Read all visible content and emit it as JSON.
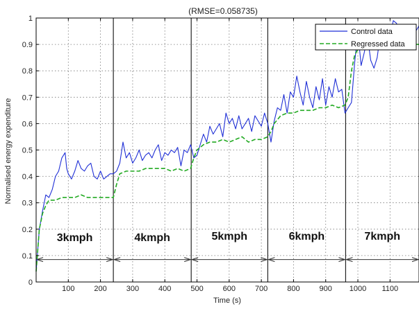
{
  "chart_data": {
    "type": "line",
    "title": "(RMSE=0.058735)",
    "xlabel": "Time (s)",
    "ylabel": "Normalised energy expenditure",
    "xlim": [
      0,
      1190
    ],
    "ylim": [
      0,
      1
    ],
    "grid": true,
    "legend_position": "top-right",
    "x_ticks": [
      100,
      200,
      300,
      400,
      500,
      600,
      700,
      800,
      900,
      1000,
      1100
    ],
    "y_ticks": [
      0,
      0.1,
      0.2,
      0.3,
      0.4,
      0.5,
      0.6,
      0.7,
      0.8,
      0.9,
      1
    ],
    "x_tick_labels": [
      "100",
      "200",
      "300",
      "400",
      "500",
      "600",
      "700",
      "800",
      "900",
      "1000",
      "1100"
    ],
    "y_tick_labels": [
      "0",
      "0.1",
      "0.2",
      "0.3",
      "0.4",
      "0.5",
      "0.6",
      "0.7",
      "0.8",
      "0.9",
      "1"
    ],
    "phase_boundaries": [
      240,
      482,
      720,
      962
    ],
    "phase_arrow_y": 0.085,
    "phases": [
      {
        "label": "3kmph",
        "x_start": 0,
        "x_end": 240,
        "label_x": 120,
        "label_y": 0.155
      },
      {
        "label": "4kmph",
        "x_start": 240,
        "x_end": 482,
        "label_x": 361,
        "label_y": 0.155
      },
      {
        "label": "5kmph",
        "x_start": 482,
        "x_end": 720,
        "label_x": 601,
        "label_y": 0.16
      },
      {
        "label": "6kmph",
        "x_start": 720,
        "x_end": 962,
        "label_x": 841,
        "label_y": 0.16
      },
      {
        "label": "7kmph",
        "x_start": 962,
        "x_end": 1190,
        "label_x": 1076,
        "label_y": 0.16
      }
    ],
    "series": [
      {
        "name": "Control data",
        "color": "#1f2fd6",
        "dash": "solid",
        "x": [
          0,
          5,
          10,
          20,
          30,
          40,
          50,
          60,
          70,
          80,
          90,
          95,
          100,
          110,
          120,
          130,
          140,
          150,
          160,
          170,
          180,
          190,
          200,
          210,
          220,
          230,
          240,
          250,
          260,
          270,
          280,
          290,
          300,
          310,
          320,
          330,
          340,
          350,
          360,
          370,
          380,
          390,
          400,
          410,
          420,
          430,
          440,
          450,
          460,
          470,
          480,
          490,
          500,
          510,
          520,
          530,
          540,
          550,
          560,
          570,
          580,
          590,
          600,
          610,
          620,
          630,
          640,
          650,
          660,
          670,
          680,
          690,
          700,
          710,
          720,
          730,
          740,
          750,
          760,
          770,
          780,
          790,
          800,
          810,
          820,
          830,
          840,
          850,
          860,
          870,
          880,
          890,
          900,
          910,
          920,
          930,
          940,
          950,
          960,
          970,
          980,
          990,
          1000,
          1010,
          1020,
          1030,
          1040,
          1050,
          1060,
          1070,
          1080,
          1090,
          1100,
          1110,
          1120,
          1130,
          1140,
          1150,
          1160,
          1170,
          1180,
          1190
        ],
        "y": [
          0.04,
          0.12,
          0.2,
          0.27,
          0.33,
          0.32,
          0.35,
          0.4,
          0.42,
          0.47,
          0.49,
          0.43,
          0.41,
          0.39,
          0.42,
          0.46,
          0.43,
          0.42,
          0.44,
          0.45,
          0.4,
          0.39,
          0.42,
          0.39,
          0.4,
          0.41,
          0.41,
          0.42,
          0.45,
          0.53,
          0.47,
          0.49,
          0.45,
          0.47,
          0.5,
          0.46,
          0.48,
          0.49,
          0.47,
          0.5,
          0.52,
          0.46,
          0.49,
          0.48,
          0.5,
          0.49,
          0.51,
          0.44,
          0.5,
          0.49,
          0.52,
          0.47,
          0.48,
          0.52,
          0.56,
          0.53,
          0.59,
          0.56,
          0.58,
          0.6,
          0.55,
          0.64,
          0.6,
          0.62,
          0.58,
          0.63,
          0.58,
          0.6,
          0.62,
          0.57,
          0.63,
          0.61,
          0.59,
          0.64,
          0.6,
          0.53,
          0.61,
          0.66,
          0.65,
          0.71,
          0.64,
          0.72,
          0.7,
          0.78,
          0.72,
          0.67,
          0.76,
          0.7,
          0.66,
          0.74,
          0.69,
          0.77,
          0.67,
          0.74,
          0.7,
          0.77,
          0.72,
          0.73,
          0.64,
          0.66,
          0.68,
          0.83,
          0.95,
          0.82,
          0.87,
          0.93,
          0.84,
          0.81,
          0.85,
          0.94,
          0.91,
          0.97,
          0.93,
          0.99,
          0.98,
          0.95,
          0.97,
          0.96,
          0.94,
          0.93,
          0.95,
          0.97
        ]
      },
      {
        "name": "Regressed data",
        "color": "#22aa22",
        "dash": "dashed",
        "x": [
          0,
          5,
          10,
          20,
          30,
          40,
          60,
          80,
          100,
          120,
          140,
          160,
          180,
          200,
          220,
          240,
          250,
          260,
          280,
          300,
          320,
          340,
          360,
          380,
          400,
          420,
          440,
          460,
          480,
          490,
          500,
          520,
          540,
          560,
          580,
          600,
          620,
          640,
          660,
          680,
          700,
          720,
          730,
          740,
          760,
          780,
          800,
          820,
          840,
          860,
          880,
          900,
          920,
          940,
          960,
          970,
          980,
          990,
          1000,
          1020,
          1040,
          1060,
          1080,
          1100,
          1120,
          1140,
          1160,
          1180,
          1190
        ],
        "y": [
          0.04,
          0.12,
          0.2,
          0.26,
          0.29,
          0.31,
          0.31,
          0.32,
          0.32,
          0.32,
          0.33,
          0.32,
          0.32,
          0.32,
          0.32,
          0.32,
          0.37,
          0.41,
          0.42,
          0.42,
          0.42,
          0.43,
          0.43,
          0.43,
          0.43,
          0.42,
          0.43,
          0.42,
          0.43,
          0.47,
          0.5,
          0.52,
          0.53,
          0.53,
          0.54,
          0.53,
          0.54,
          0.55,
          0.53,
          0.54,
          0.54,
          0.55,
          0.57,
          0.6,
          0.63,
          0.64,
          0.64,
          0.65,
          0.65,
          0.65,
          0.66,
          0.66,
          0.67,
          0.66,
          0.67,
          0.7,
          0.8,
          0.86,
          0.88,
          0.88,
          0.89,
          0.89,
          0.89,
          0.89,
          0.89,
          0.89,
          0.9,
          0.9,
          0.9
        ]
      }
    ]
  }
}
